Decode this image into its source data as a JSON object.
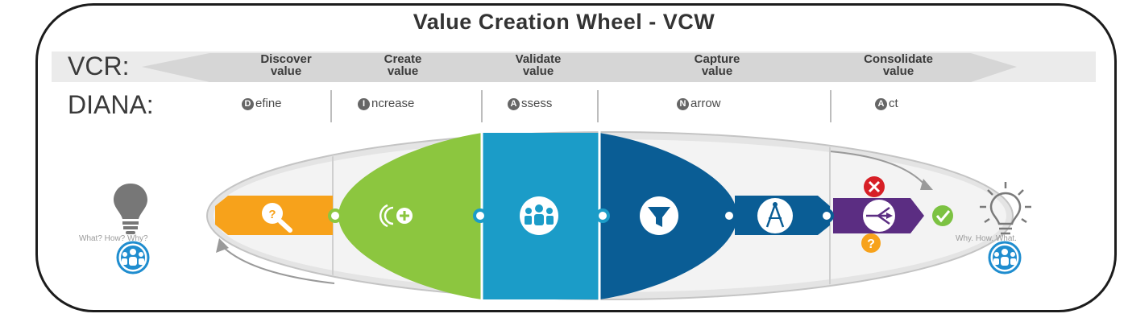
{
  "title": "Value Creation Wheel - VCW",
  "vcr": {
    "label": "VCR:",
    "stages": [
      {
        "line1": "Discover",
        "line2": "value"
      },
      {
        "line1": "Create",
        "line2": "value"
      },
      {
        "line1": "Validate",
        "line2": "value"
      },
      {
        "line1": "Capture",
        "line2": "value"
      },
      {
        "line1": "Consolidate",
        "line2": "value"
      }
    ]
  },
  "diana": {
    "label": "DIANA:",
    "steps": [
      {
        "initial": "D",
        "rest": "efine"
      },
      {
        "initial": "I",
        "rest": "ncrease"
      },
      {
        "initial": "A",
        "rest": "ssess"
      },
      {
        "initial": "N",
        "rest": "arrow"
      },
      {
        "initial": "A",
        "rest": "ct"
      }
    ]
  },
  "left_caption": "What? How? Why?",
  "right_caption": "Why. How. What.",
  "colors": {
    "orange": "#f7a21b",
    "green": "#8cc63f",
    "light_blue": "#1b9cc8",
    "dark_blue": "#0a5d95",
    "purple": "#5b2d82",
    "red": "#d71f26",
    "check_green": "#7cc242",
    "bulb_gray": "#777777",
    "people_blue": "#1f8dcf"
  },
  "icons": [
    "magnifier-question-icon",
    "increase-plus-icon",
    "people-group-icon",
    "funnel-icon",
    "compass-icon",
    "decision-arrows-icon",
    "reject-x-icon",
    "question-icon",
    "check-icon",
    "lightbulb-off-icon",
    "lightbulb-on-icon"
  ]
}
